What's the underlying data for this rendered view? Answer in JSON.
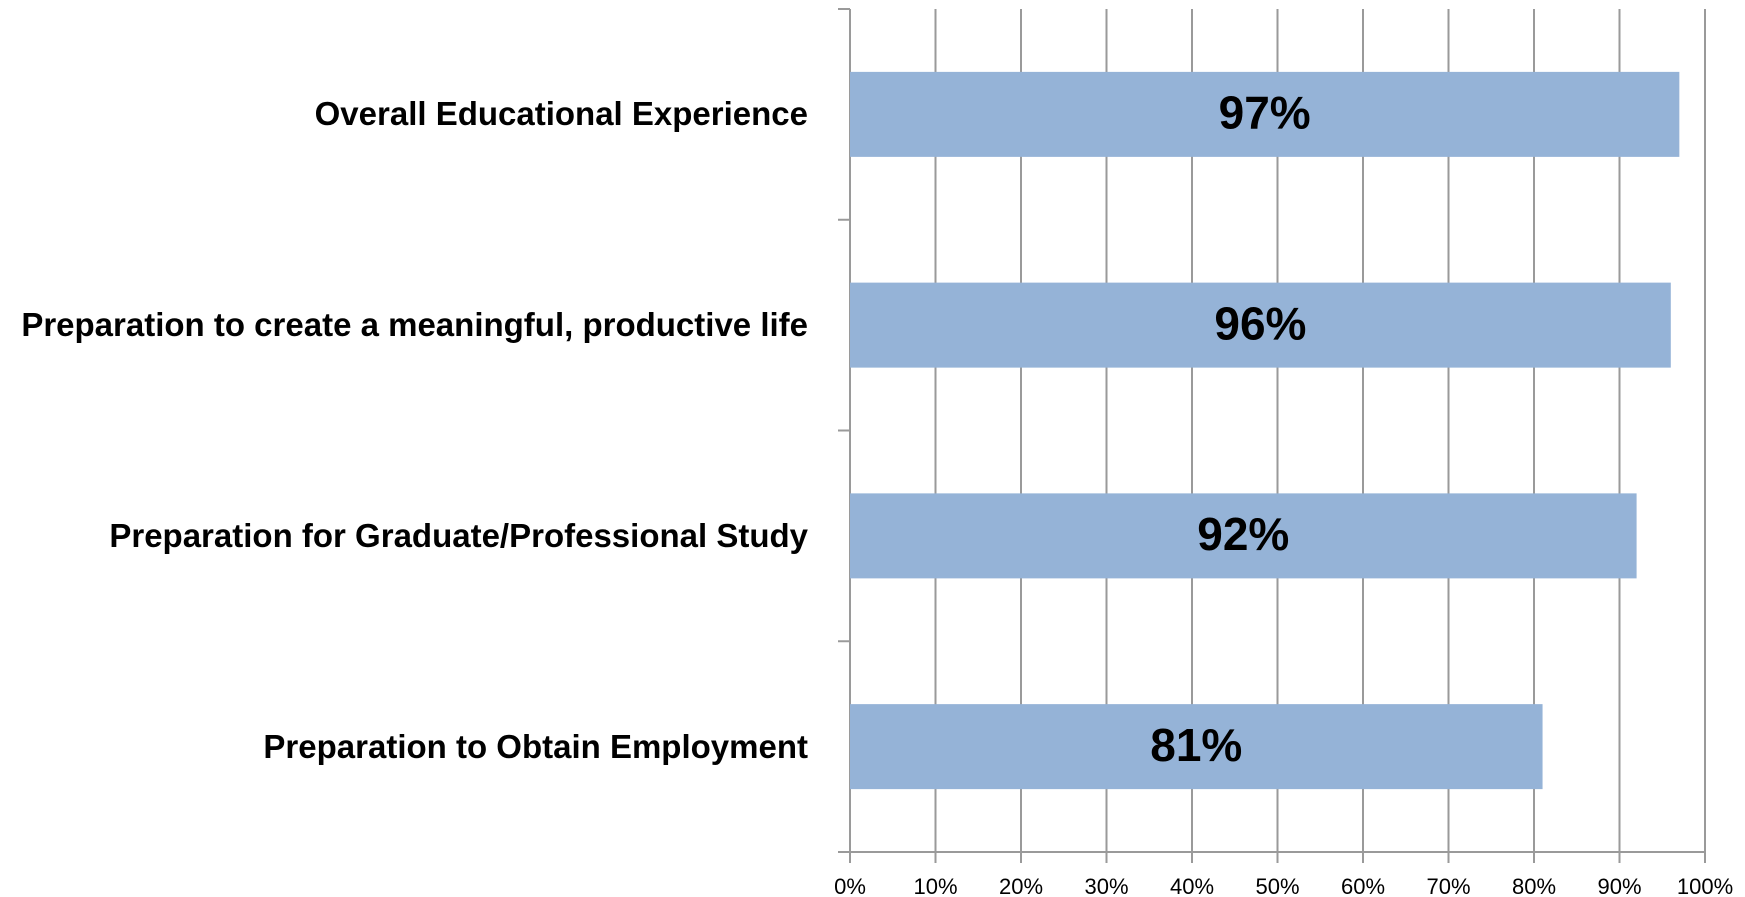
{
  "chart_data": {
    "type": "bar",
    "orientation": "horizontal",
    "categories": [
      "Overall Educational Experience",
      "Preparation to create a meaningful, productive life",
      "Preparation for Graduate/Professional Study",
      "Preparation to Obtain Employment"
    ],
    "values": [
      97,
      96,
      92,
      81
    ],
    "value_labels": [
      "97%",
      "96%",
      "92%",
      "81%"
    ],
    "color": "#95b3d7",
    "xlim": [
      0,
      100
    ],
    "xticks": [
      {
        "value": 0,
        "label": "0%"
      },
      {
        "value": 10,
        "label": "10%"
      },
      {
        "value": 20,
        "label": "20%"
      },
      {
        "value": 30,
        "label": "30%"
      },
      {
        "value": 40,
        "label": "40%"
      },
      {
        "value": 50,
        "label": "50%"
      },
      {
        "value": 60,
        "label": "60%"
      },
      {
        "value": 70,
        "label": "70%"
      },
      {
        "value": 80,
        "label": "80%"
      },
      {
        "value": 90,
        "label": "90%"
      },
      {
        "value": 100,
        "label": "100%"
      }
    ],
    "grid": true
  }
}
